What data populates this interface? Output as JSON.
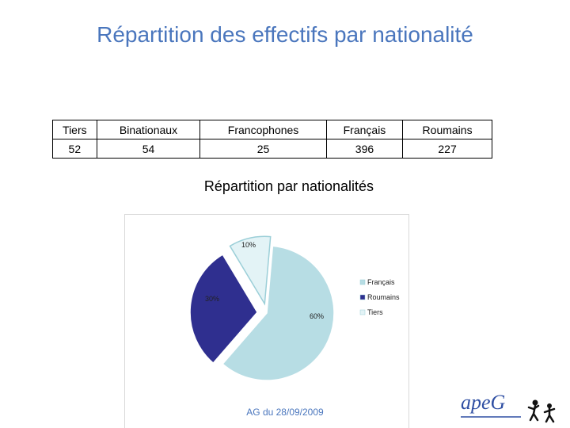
{
  "slide": {
    "title": "Répartition des effectifs par nationalité",
    "footer": "AG du 28/09/2009"
  },
  "table": {
    "headers": [
      "Tiers",
      "Binationaux",
      "Francophones",
      "Français",
      "Roumains"
    ],
    "values": [
      "52",
      "54",
      "25",
      "396",
      "227"
    ]
  },
  "chart_data": {
    "type": "pie",
    "title": "Répartition par nationalités",
    "labels": [
      "Français",
      "Roumains",
      "Tiers"
    ],
    "values": [
      60,
      30,
      10
    ],
    "value_labels": [
      "60%",
      "30%",
      "10%"
    ],
    "colors": [
      "#b7dde4",
      "#2f2f8f",
      "#e3f3f6"
    ],
    "exploded": true,
    "legend_position": "right"
  },
  "logo": {
    "text": "apeG"
  }
}
